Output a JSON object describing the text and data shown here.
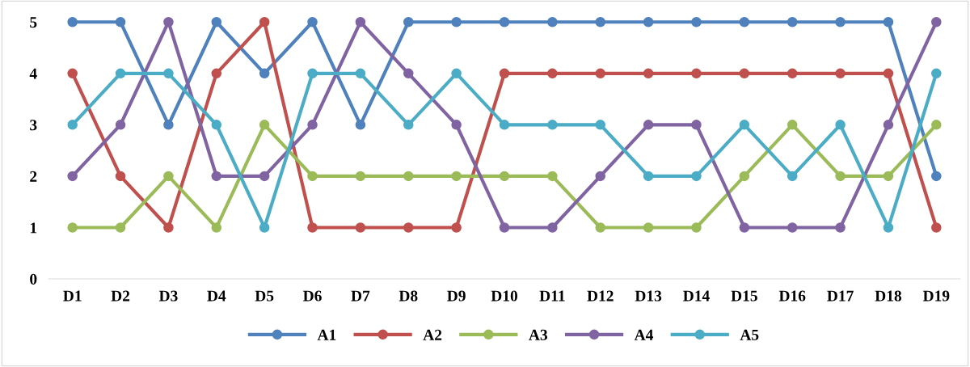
{
  "chart_data": {
    "type": "line",
    "categories": [
      "D1",
      "D2",
      "D3",
      "D4",
      "D5",
      "D6",
      "D7",
      "D8",
      "D9",
      "D10",
      "D11",
      "D12",
      "D13",
      "D14",
      "D15",
      "D16",
      "D17",
      "D18",
      "D19"
    ],
    "series": [
      {
        "name": "A1",
        "color": "#4f81bd",
        "values": [
          5,
          5,
          3,
          5,
          4,
          5,
          3,
          5,
          5,
          5,
          5,
          5,
          5,
          5,
          5,
          5,
          5,
          5,
          2
        ]
      },
      {
        "name": "A2",
        "color": "#c0504d",
        "values": [
          4,
          2,
          1,
          4,
          5,
          1,
          1,
          1,
          1,
          4,
          4,
          4,
          4,
          4,
          4,
          4,
          4,
          4,
          1
        ]
      },
      {
        "name": "A3",
        "color": "#9bbb59",
        "values": [
          1,
          1,
          2,
          1,
          3,
          2,
          2,
          2,
          2,
          2,
          2,
          1,
          1,
          1,
          2,
          3,
          2,
          2,
          3
        ]
      },
      {
        "name": "A4",
        "color": "#8064a2",
        "values": [
          2,
          3,
          5,
          2,
          2,
          3,
          5,
          4,
          3,
          1,
          1,
          2,
          3,
          3,
          1,
          1,
          1,
          3,
          5
        ]
      },
      {
        "name": "A5",
        "color": "#4bacc6",
        "values": [
          3,
          4,
          4,
          3,
          1,
          4,
          4,
          3,
          4,
          3,
          3,
          3,
          2,
          2,
          3,
          2,
          3,
          1,
          4
        ]
      }
    ],
    "ylim": [
      0,
      5
    ],
    "yticks": [
      0,
      1,
      2,
      3,
      4,
      5
    ],
    "marker": "circle",
    "line_style": "solid",
    "grid": false,
    "legend": "bottom"
  }
}
